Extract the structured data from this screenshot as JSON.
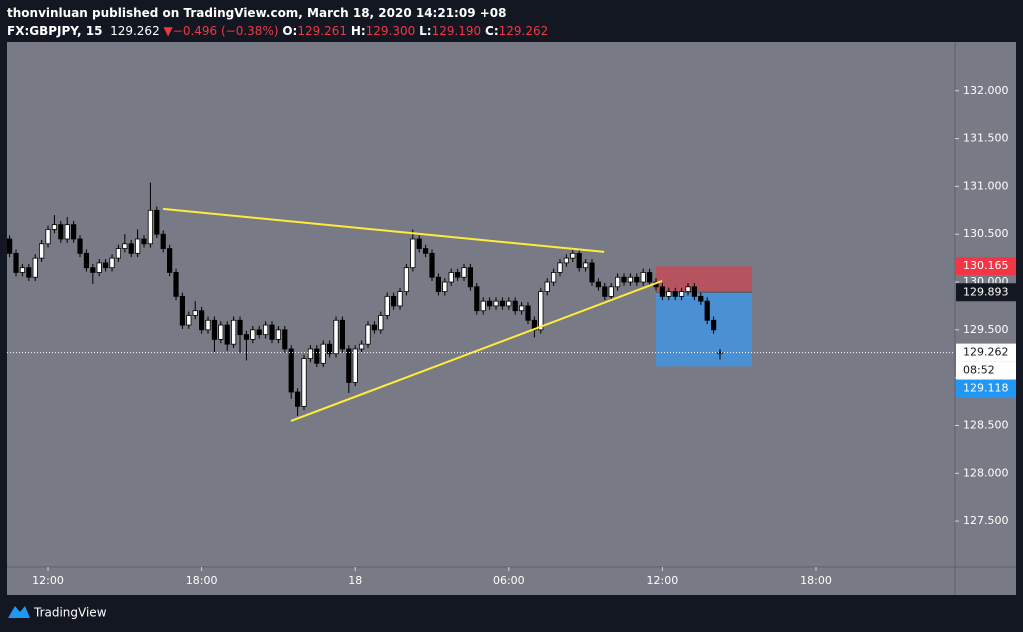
{
  "header": {
    "publisher": "thonvinluan published on TradingView.com, March 18, 2020 14:21:09 +08",
    "symbol": "FX:GBPJPY, 15",
    "price": "129.262",
    "arrow": "▼",
    "change": "−0.496 (−0.38%)",
    "o_label": "O:",
    "open": "129.261",
    "h_label": "H:",
    "high": "129.300",
    "l_label": "L:",
    "low": "129.190",
    "c_label": "C:",
    "close": "129.262"
  },
  "chart_data": {
    "type": "candlestick",
    "open": [
      130.45,
      130.3,
      130.1,
      130.15,
      130.05,
      130.25,
      130.4,
      130.55,
      130.6,
      130.45,
      130.6,
      130.45,
      130.3,
      130.15,
      130.1,
      130.2,
      130.15,
      130.25,
      130.35,
      130.4,
      130.3,
      130.45,
      130.4,
      130.75,
      130.5,
      130.35,
      130.1,
      129.85,
      129.55,
      129.65,
      129.7,
      129.5,
      129.6,
      129.4,
      129.55,
      129.35,
      129.6,
      129.45,
      129.4,
      129.5,
      129.45,
      129.55,
      129.4,
      129.5,
      129.3,
      128.85,
      128.7,
      129.2,
      129.3,
      129.15,
      129.35,
      129.25,
      129.6,
      129.3,
      128.95,
      129.3,
      129.35,
      129.55,
      129.5,
      129.65,
      129.85,
      129.75,
      129.9,
      130.15,
      130.45,
      130.35,
      130.3,
      130.05,
      129.9,
      130.0,
      130.1,
      130.05,
      130.15,
      129.95,
      129.7,
      129.8,
      129.75,
      129.8,
      129.75,
      129.8,
      129.7,
      129.75,
      129.6,
      129.5,
      129.9,
      130.0,
      130.1,
      130.2,
      130.25,
      130.3,
      130.15,
      130.2,
      130.0,
      129.95,
      129.85,
      129.95,
      130.05,
      130.0,
      130.05,
      130.0,
      130.1,
      130.0,
      129.95,
      129.85,
      129.9,
      129.85,
      129.9,
      129.95,
      129.85,
      129.8,
      129.6,
      129.261
    ],
    "high": [
      130.49,
      130.34,
      130.19,
      130.19,
      130.29,
      130.44,
      130.59,
      130.7,
      130.64,
      130.68,
      130.64,
      130.49,
      130.34,
      130.19,
      130.24,
      130.24,
      130.29,
      130.39,
      130.5,
      130.44,
      130.55,
      130.49,
      131.04,
      130.79,
      130.54,
      130.39,
      130.14,
      129.89,
      129.69,
      129.8,
      129.74,
      129.64,
      129.64,
      129.59,
      129.59,
      129.64,
      129.64,
      129.49,
      129.54,
      129.54,
      129.59,
      129.59,
      129.54,
      129.54,
      129.34,
      128.89,
      129.24,
      129.34,
      129.34,
      129.39,
      129.39,
      129.64,
      129.64,
      129.34,
      129.34,
      129.39,
      129.59,
      129.59,
      129.69,
      129.89,
      129.89,
      129.94,
      130.19,
      130.55,
      130.49,
      130.39,
      130.34,
      130.09,
      130.04,
      130.14,
      130.14,
      130.19,
      130.19,
      129.99,
      129.84,
      129.84,
      129.84,
      129.84,
      129.84,
      129.84,
      129.79,
      129.79,
      129.64,
      129.94,
      130.04,
      130.14,
      130.24,
      130.29,
      130.34,
      130.34,
      130.24,
      130.24,
      130.04,
      129.99,
      129.99,
      130.09,
      130.09,
      130.09,
      130.09,
      130.14,
      130.14,
      130.04,
      129.99,
      129.94,
      129.94,
      129.94,
      129.99,
      129.99,
      129.89,
      129.84,
      129.64,
      129.3
    ],
    "low": [
      130.26,
      130.06,
      130.06,
      130.01,
      130.01,
      130.21,
      130.36,
      130.51,
      130.41,
      130.41,
      130.41,
      130.26,
      130.11,
      129.98,
      130.06,
      130.11,
      130.11,
      130.21,
      130.31,
      130.26,
      130.26,
      130.36,
      130.36,
      130.46,
      130.31,
      130.06,
      129.81,
      129.51,
      129.51,
      129.61,
      129.46,
      129.46,
      129.26,
      129.36,
      129.28,
      129.31,
      129.26,
      129.18,
      129.36,
      129.41,
      129.41,
      129.36,
      129.36,
      129.26,
      128.78,
      128.6,
      128.66,
      129.16,
      129.11,
      129.11,
      129.21,
      129.21,
      129.26,
      128.84,
      128.91,
      129.26,
      129.31,
      129.46,
      129.46,
      129.61,
      129.71,
      129.71,
      129.86,
      130.11,
      130.31,
      130.26,
      130.01,
      129.86,
      129.86,
      129.96,
      130.01,
      130.01,
      129.91,
      129.66,
      129.66,
      129.71,
      129.71,
      129.71,
      129.71,
      129.66,
      129.66,
      129.56,
      129.42,
      129.46,
      129.86,
      129.96,
      130.06,
      130.16,
      130.21,
      130.11,
      130.11,
      129.96,
      129.91,
      129.81,
      129.81,
      129.91,
      129.96,
      129.96,
      129.96,
      129.96,
      129.96,
      129.91,
      129.81,
      129.81,
      129.81,
      129.81,
      129.86,
      129.81,
      129.76,
      129.56,
      129.46,
      129.19
    ],
    "close": [
      130.3,
      130.1,
      130.15,
      130.05,
      130.25,
      130.4,
      130.55,
      130.6,
      130.45,
      130.6,
      130.45,
      130.3,
      130.15,
      130.1,
      130.2,
      130.15,
      130.25,
      130.35,
      130.4,
      130.3,
      130.45,
      130.4,
      130.75,
      130.5,
      130.35,
      130.1,
      129.85,
      129.55,
      129.65,
      129.7,
      129.5,
      129.6,
      129.4,
      129.55,
      129.35,
      129.6,
      129.45,
      129.4,
      129.5,
      129.45,
      129.55,
      129.4,
      129.5,
      129.3,
      128.85,
      128.7,
      129.2,
      129.3,
      129.15,
      129.35,
      129.25,
      129.6,
      129.3,
      128.95,
      129.3,
      129.35,
      129.55,
      129.5,
      129.65,
      129.85,
      129.75,
      129.9,
      130.15,
      130.45,
      130.35,
      130.3,
      130.05,
      129.9,
      130.0,
      130.1,
      130.05,
      130.15,
      129.95,
      129.7,
      129.8,
      129.75,
      129.8,
      129.75,
      129.8,
      129.7,
      129.75,
      129.6,
      129.5,
      129.9,
      130.0,
      130.1,
      130.2,
      130.25,
      130.3,
      130.15,
      130.2,
      130.0,
      129.95,
      129.85,
      129.95,
      130.05,
      130.0,
      130.05,
      130.0,
      130.1,
      130.0,
      129.95,
      129.85,
      129.9,
      129.85,
      129.9,
      129.95,
      129.85,
      129.8,
      129.6,
      129.5,
      129.262
    ],
    "up_color": "#ffffff",
    "down_color": "#000000",
    "xlim": [
      -0.41,
      147.72
    ],
    "xticks": [
      {
        "value": 6,
        "label": "12:00"
      },
      {
        "value": 30,
        "label": "18:00"
      },
      {
        "value": 54,
        "label": "18"
      },
      {
        "value": 78,
        "label": "06:00"
      },
      {
        "value": 102,
        "label": "12:00"
      },
      {
        "value": 126,
        "label": "18:00"
      }
    ],
    "ylim": [
      127.02,
      132.51
    ],
    "yticks": [
      {
        "value": 127.5,
        "label": "127.500"
      },
      {
        "value": 128,
        "label": "128.000"
      },
      {
        "value": 128.5,
        "label": "128.500"
      },
      {
        "value": 129,
        "label": "129.000"
      },
      {
        "value": 129.5,
        "label": "129.500"
      },
      {
        "value": 130,
        "label": "130.000"
      },
      {
        "value": 130.5,
        "label": "130.500"
      },
      {
        "value": 131,
        "label": "131.000"
      },
      {
        "value": 131.5,
        "label": "131.500"
      },
      {
        "value": 132,
        "label": "132.000"
      }
    ],
    "last_price": 129.262,
    "countdown": "08:52",
    "price_labels": [
      {
        "value": 130.165,
        "color": "#f23645",
        "text_color": "#ffffff"
      },
      {
        "value": 129.893,
        "color": "#131722",
        "text_color": "#ffffff"
      },
      {
        "value": 129.262,
        "color": "#ffffff",
        "text_color": "#131722"
      },
      {
        "value": 129.118,
        "color": "#2196f3",
        "text_color": "#ffffff"
      }
    ],
    "trend_lines": [
      {
        "x": [
          23.97,
          92.9
        ],
        "y": [
          130.765,
          130.315
        ],
        "color": "#ffeb3b"
      },
      {
        "x": [
          43.97,
          101.94
        ],
        "y": [
          128.547,
          130.012
        ],
        "color": "#ffeb3b"
      }
    ],
    "position": {
      "x": [
        101,
        116
      ],
      "stop": 130.165,
      "entry": 129.893,
      "target": 129.118,
      "stop_color": "#b5545e",
      "target_color": "#4a90d2"
    }
  },
  "footer": {
    "brand": "TradingView"
  }
}
